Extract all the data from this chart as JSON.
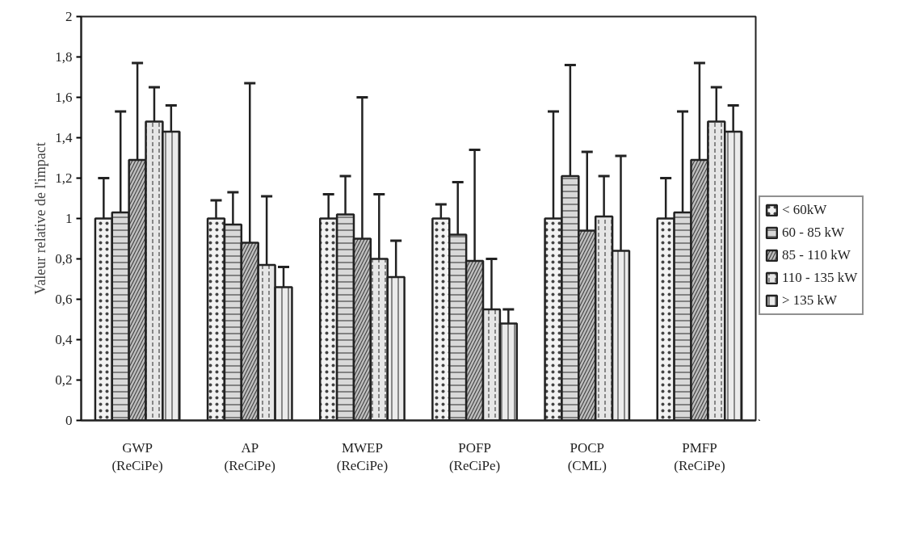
{
  "chart_data": {
    "type": "bar",
    "ylabel": "Valeur relative de l'impact",
    "categories": [
      "GWP\n(ReCiPe)",
      "AP\n(ReCiPe)",
      "MWEP\n(ReCiPe)",
      "POFP\n(ReCiPe)",
      "POCP\n(CML)",
      "PMFP\n(ReCiPe)"
    ],
    "ylim": [
      0,
      2
    ],
    "yticks": [
      0,
      {
        "value": 0.2,
        "label": "0,2"
      },
      {
        "value": 0.4,
        "label": "0,4"
      },
      {
        "value": 0.6,
        "label": "0,6"
      },
      {
        "value": 0.8,
        "label": "0,8"
      },
      1,
      {
        "value": 1.2,
        "label": "1,2"
      },
      {
        "value": 1.4,
        "label": "1,4"
      },
      {
        "value": 1.6,
        "label": "1,6"
      },
      {
        "value": 1.8,
        "label": "1,8"
      },
      2
    ],
    "grid": false,
    "legend": "right",
    "series": [
      {
        "name": "< 60kW",
        "color": "#f2f2f2",
        "values": [
          1.0,
          1.0,
          1.0,
          1.0,
          1.0,
          1.0
        ],
        "errors": [
          [
            0.84,
            1.2
          ],
          [
            0.74,
            1.09
          ],
          [
            0.78,
            1.12
          ],
          [
            0.82,
            1.07
          ],
          [
            0.73,
            1.53
          ],
          [
            0.84,
            1.2
          ]
        ]
      },
      {
        "name": "60 - 85 kW",
        "color": "#d9d9d9",
        "values": [
          1.03,
          0.97,
          1.02,
          0.92,
          1.21,
          1.03
        ],
        "errors": [
          [
            0.93,
            1.53
          ],
          [
            0.65,
            1.13
          ],
          [
            0.71,
            1.21
          ],
          [
            0.48,
            1.18
          ],
          [
            0.56,
            1.76
          ],
          [
            0.93,
            1.53
          ]
        ]
      },
      {
        "name": "85 - 110 kW",
        "color": "#bfbfbf",
        "values": [
          1.29,
          0.88,
          0.9,
          0.79,
          0.94,
          1.29
        ],
        "errors": [
          [
            1.09,
            1.77
          ],
          [
            0.63,
            1.67
          ],
          [
            0.67,
            1.6
          ],
          [
            0.45,
            1.34
          ],
          [
            0.56,
            1.33
          ],
          [
            1.09,
            1.77
          ]
        ]
      },
      {
        "name": "110 - 135 kW",
        "color": "#e6e6e6",
        "values": [
          1.48,
          0.77,
          0.8,
          0.55,
          1.01,
          1.48
        ],
        "errors": [
          [
            1.22,
            1.65
          ],
          [
            0.25,
            1.11
          ],
          [
            0.37,
            1.12
          ],
          [
            0.3,
            0.8
          ],
          [
            0.69,
            1.21
          ],
          [
            1.22,
            1.65
          ]
        ]
      },
      {
        "name": "> 135 kW",
        "color": "#ebebeb",
        "values": [
          1.43,
          0.66,
          0.71,
          0.48,
          0.84,
          1.43
        ],
        "errors": [
          [
            1.33,
            1.56
          ],
          [
            0.62,
            0.76
          ],
          [
            0.64,
            0.89
          ],
          [
            0.46,
            0.55
          ],
          [
            0.68,
            1.31
          ],
          [
            1.33,
            1.56
          ]
        ]
      }
    ]
  }
}
